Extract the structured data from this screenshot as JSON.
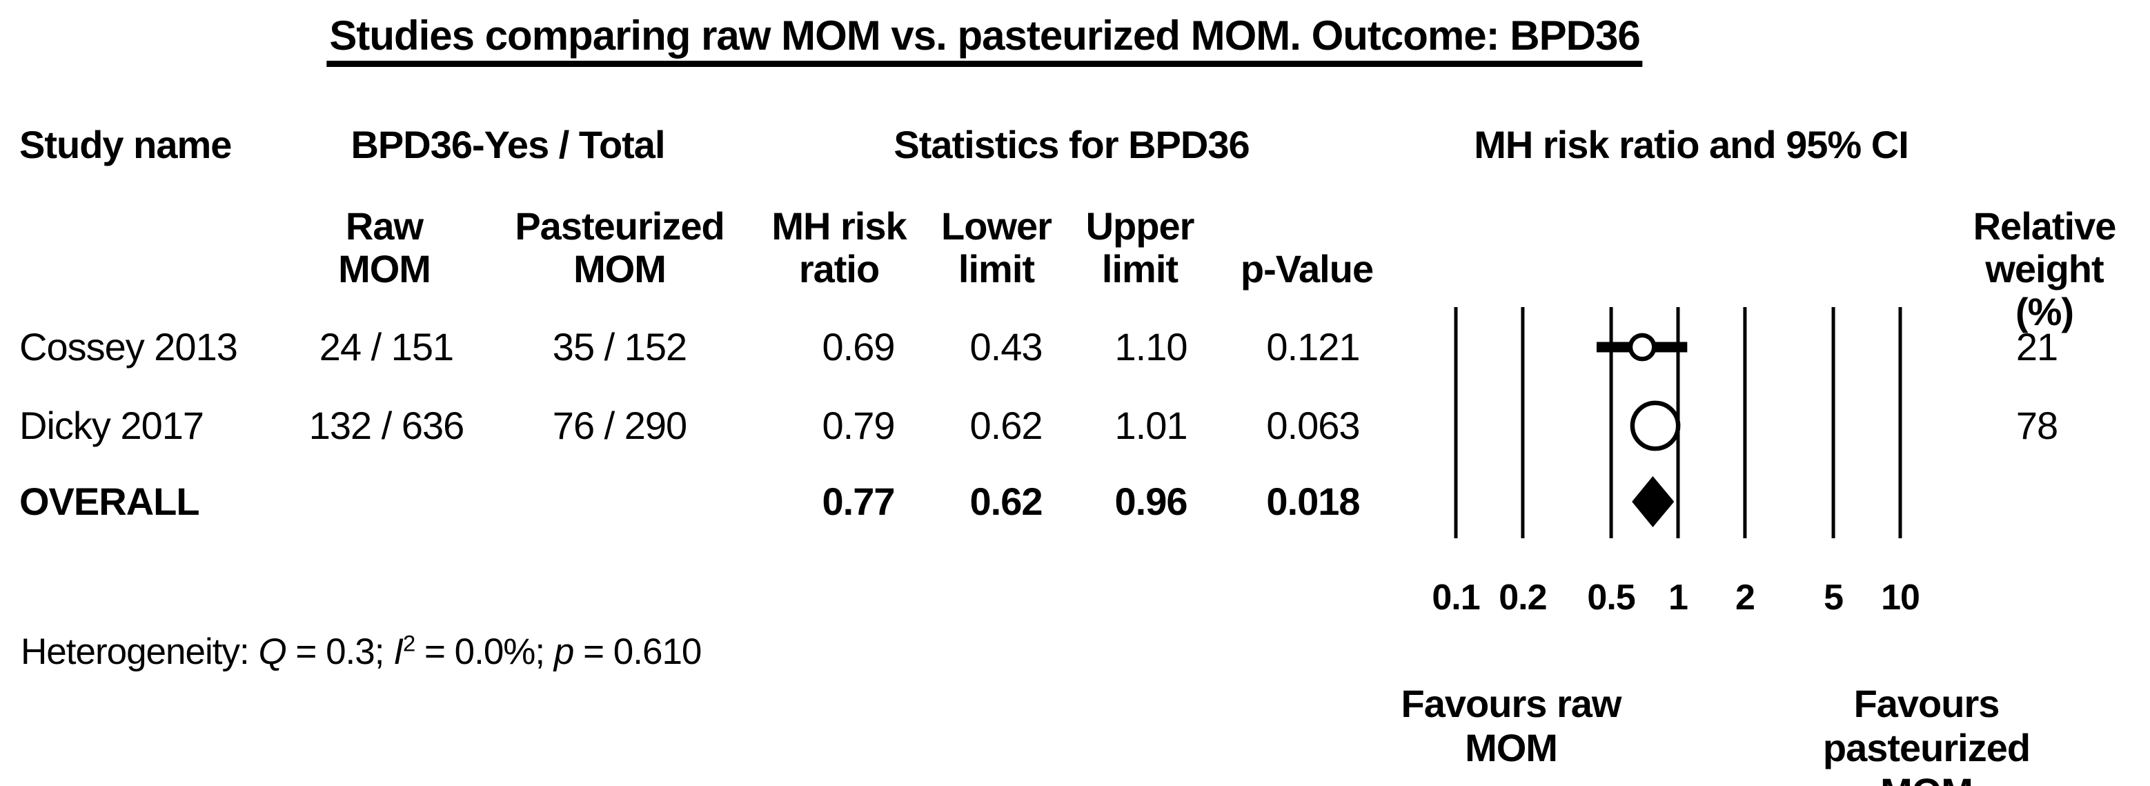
{
  "title": "Studies comparing raw MOM vs. pasteurized MOM. Outcome: BPD36",
  "header": {
    "study": "Study name",
    "events_group": "BPD36-Yes / Total",
    "stats_group": "Statistics for BPD36",
    "plot_group": "MH risk ratio and 95% CI",
    "raw": "Raw\nMOM",
    "pasteurized": "Pasteurized\nMOM",
    "rr": "MH risk\nratio",
    "lower": "Lower\nlimit",
    "upper": "Upper\nlimit",
    "pvalue": "p-Value",
    "weight": "Relative\nweight (%)"
  },
  "rows": [
    {
      "study": "Cossey 2013",
      "raw": "24 / 151",
      "pasteurized": "35 / 152",
      "rr": "0.69",
      "lower": "0.43",
      "upper": "1.10",
      "p": "0.121",
      "weight": "21"
    },
    {
      "study": "Dicky 2017",
      "raw": "132 / 636",
      "pasteurized": "76 / 290",
      "rr": "0.79",
      "lower": "0.62",
      "upper": "1.01",
      "p": "0.063",
      "weight": "78"
    },
    {
      "study": "OVERALL",
      "raw": "",
      "pasteurized": "",
      "rr": "0.77",
      "lower": "0.62",
      "upper": "0.96",
      "p": "0.018",
      "weight": ""
    }
  ],
  "heterogeneity": {
    "prefix": "Heterogeneity: ",
    "q_label": "Q",
    "q_rest": " = 0.3; ",
    "i_label": "I",
    "i_sup": "2",
    "i_rest": " = 0.0%; ",
    "p_label": "p",
    "p_rest": " = 0.610"
  },
  "footer": {
    "favours_left": "Favours raw\nMOM",
    "favours_right": "Favours pasteurized\nMOM"
  },
  "colors": {
    "ink": "#000000",
    "background": "#ffffff"
  },
  "chart_data": {
    "type": "scatter",
    "subtype": "forest-plot",
    "title": "Studies comparing raw MOM vs. pasteurized MOM. Outcome: BPD36",
    "x_scale": "log10",
    "x_ticks": [
      0.1,
      0.2,
      0.5,
      1,
      2,
      5,
      10
    ],
    "x_tick_labels": [
      "0.1",
      "0.2",
      "0.5",
      "1",
      "2",
      "5",
      "10"
    ],
    "xlim": [
      0.1,
      10
    ],
    "grid": "vertical-lines-only",
    "effect_measure": "MH risk ratio",
    "ci_level": "95%",
    "studies": [
      {
        "name": "Cossey 2013",
        "marker": "circle",
        "rr": 0.69,
        "lower": 0.43,
        "upper": 1.1,
        "p_value": 0.121,
        "weight_pct": 21,
        "events_raw_mom": 24,
        "total_raw_mom": 151,
        "events_pasteurized_mom": 35,
        "total_pasteurized_mom": 152
      },
      {
        "name": "Dicky 2017",
        "marker": "circle",
        "rr": 0.79,
        "lower": 0.62,
        "upper": 1.01,
        "p_value": 0.063,
        "weight_pct": 78,
        "events_raw_mom": 132,
        "total_raw_mom": 636,
        "events_pasteurized_mom": 76,
        "total_pasteurized_mom": 290
      },
      {
        "name": "OVERALL",
        "marker": "diamond",
        "rr": 0.77,
        "lower": 0.62,
        "upper": 0.96,
        "p_value": 0.018
      }
    ],
    "heterogeneity": {
      "Q": 0.3,
      "I2_pct": 0.0,
      "p": 0.61
    },
    "favours_left": "Favours raw MOM",
    "favours_right": "Favours pasteurized MOM"
  }
}
